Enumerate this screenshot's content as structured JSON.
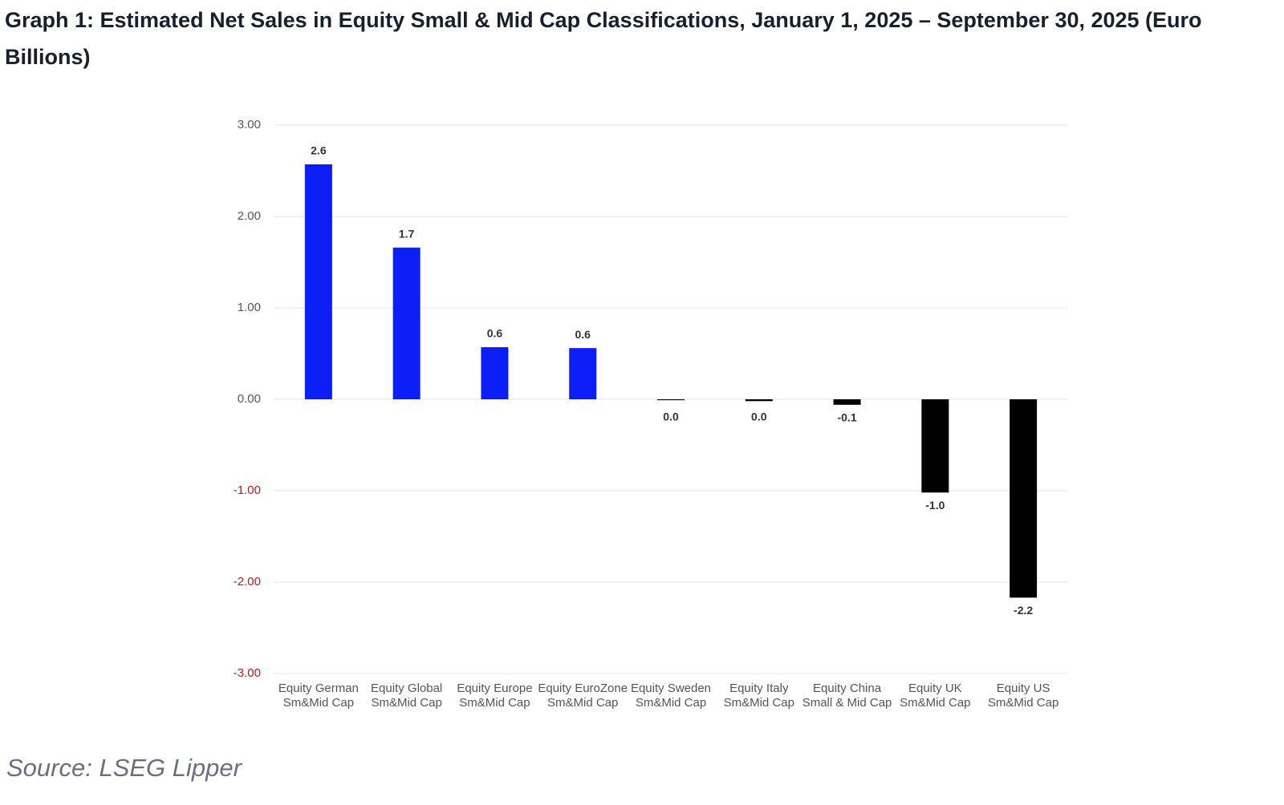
{
  "title": "Graph 1: Estimated Net Sales in Equity Small & Mid Cap Classifications, January 1, 2025 – September 30, 2025 (Euro Billions)",
  "source": "Source: LSEG Lipper",
  "chart_data": {
    "type": "bar",
    "categories": [
      "Equity German Sm&Mid Cap",
      "Equity Global Sm&Mid Cap",
      "Equity Europe Sm&Mid Cap",
      "Equity EuroZone Sm&Mid Cap",
      "Equity Sweden Sm&Mid Cap",
      "Equity Italy Sm&Mid Cap",
      "Equity China Small & Mid Cap",
      "Equity UK Sm&Mid Cap",
      "Equity US Sm&Mid Cap"
    ],
    "values": [
      2.57,
      1.66,
      0.57,
      0.56,
      -0.01,
      -0.02,
      -0.06,
      -1.02,
      -2.17
    ],
    "value_labels": [
      "2.6",
      "1.7",
      "0.6",
      "0.6",
      "0.0",
      "0.0",
      "-0.1",
      "-1.0",
      "-2.2"
    ],
    "positive_color": "#0a1ef5",
    "negative_color": "#000000",
    "negative_tick_color": "#c0171e",
    "ylim": [
      -3,
      3
    ],
    "yticks": [
      {
        "value": -3,
        "label": "-3.00"
      },
      {
        "value": -2,
        "label": "-2.00"
      },
      {
        "value": -1,
        "label": "-1.00"
      },
      {
        "value": 0,
        "label": "0.00"
      },
      {
        "value": 1,
        "label": "1.00"
      },
      {
        "value": 2,
        "label": "2.00"
      },
      {
        "value": 3,
        "label": "3.00"
      }
    ],
    "grid": true
  }
}
